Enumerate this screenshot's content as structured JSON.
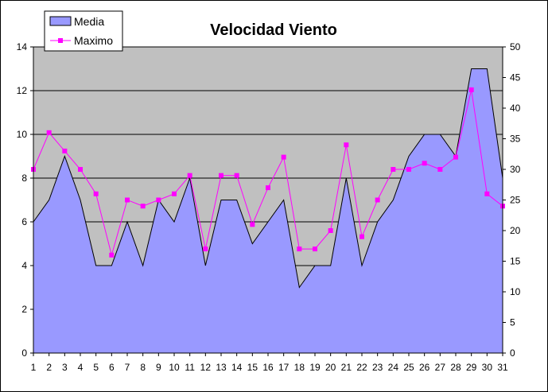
{
  "chart_data": {
    "type": "area",
    "title": "Velocidad Viento",
    "categories": [
      "1",
      "2",
      "3",
      "4",
      "5",
      "6",
      "7",
      "8",
      "9",
      "10",
      "11",
      "12",
      "13",
      "14",
      "15",
      "16",
      "17",
      "18",
      "19",
      "20",
      "21",
      "22",
      "23",
      "24",
      "25",
      "26",
      "27",
      "28",
      "29",
      "30",
      "31"
    ],
    "series": [
      {
        "name": "Media",
        "type": "area",
        "axis": "left",
        "color": "#9999ff",
        "values": [
          6,
          7,
          9,
          7,
          4,
          4,
          6,
          4,
          7,
          6,
          8,
          4,
          7,
          7,
          5,
          6,
          7,
          3,
          4,
          4,
          8,
          4,
          6,
          7,
          9,
          10,
          10,
          9,
          13,
          13,
          8
        ]
      },
      {
        "name": "Maximo",
        "type": "line",
        "axis": "right",
        "color": "#ff00ff",
        "values": [
          30,
          36,
          33,
          30,
          26,
          16,
          25,
          24,
          25,
          26,
          29,
          17,
          29,
          29,
          21,
          27,
          32,
          17,
          17,
          20,
          34,
          19,
          25,
          30,
          30,
          31,
          30,
          32,
          43,
          26,
          24
        ]
      }
    ],
    "y_left": {
      "min": 0,
      "max": 14,
      "step": 2,
      "ticks": [
        "0",
        "2",
        "4",
        "6",
        "8",
        "10",
        "12",
        "14"
      ]
    },
    "y_right": {
      "min": 0,
      "max": 50,
      "step": 5,
      "ticks": [
        "0",
        "5",
        "10",
        "15",
        "20",
        "25",
        "30",
        "35",
        "40",
        "45",
        "50"
      ]
    },
    "plot_background": "#c0c0c0",
    "gridlines": "horizontal-left-axis",
    "legend_position": "top-left"
  }
}
